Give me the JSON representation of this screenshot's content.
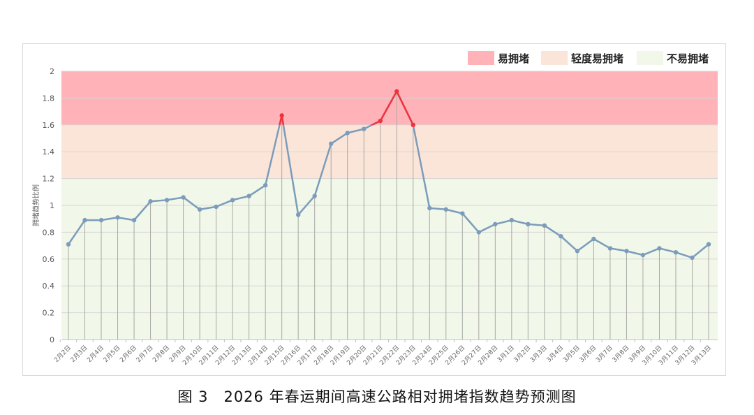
{
  "chart_data": {
    "type": "line",
    "title": "",
    "caption": "图 3　2026 年春运期间高速公路相对拥堵指数趋势预测图",
    "xlabel": "",
    "ylabel": "拥堵趋势比例",
    "ylim": [
      0,
      2
    ],
    "yticks": [
      "0",
      "0.2",
      "0.4",
      "0.6",
      "0.8",
      "1",
      "1.2",
      "1.4",
      "1.6",
      "1.8",
      "2"
    ],
    "grid": true,
    "legend_position": "top-right",
    "bands": [
      {
        "name": "易拥堵",
        "from": 1.6,
        "to": 2.0,
        "color": "#ffb3b8"
      },
      {
        "name": "轻度易拥堵",
        "from": 1.2,
        "to": 1.6,
        "color": "#fbe5d8"
      },
      {
        "name": "不易拥堵",
        "from": 0,
        "to": 1.2,
        "color": "#f1f7e9"
      }
    ],
    "line_color": "#7b9cba",
    "highlight_color": "#f0323c",
    "highlight_threshold": 1.6,
    "categories": [
      "2月2日",
      "2月3日",
      "2月4日",
      "2月5日",
      "2月6日",
      "2月7日",
      "2月8日",
      "2月9日",
      "2月10日",
      "2月11日",
      "2月12日",
      "2月13日",
      "2月14日",
      "2月15日",
      "2月16日",
      "2月17日",
      "2月18日",
      "2月19日",
      "2月20日",
      "2月21日",
      "2月22日",
      "2月23日",
      "2月24日",
      "2月25日",
      "2月26日",
      "2月27日",
      "2月28日",
      "3月1日",
      "3月2日",
      "3月3日",
      "3月4日",
      "3月5日",
      "3月6日",
      "3月7日",
      "3月8日",
      "3月9日",
      "3月10日",
      "3月11日",
      "3月12日",
      "3月13日"
    ],
    "values": [
      0.71,
      0.89,
      0.89,
      0.91,
      0.89,
      1.03,
      1.04,
      1.06,
      0.97,
      0.99,
      1.04,
      1.07,
      1.15,
      1.67,
      0.93,
      1.07,
      1.46,
      1.54,
      1.57,
      1.63,
      1.85,
      1.6,
      0.98,
      0.97,
      0.94,
      0.8,
      0.86,
      0.89,
      0.86,
      0.85,
      0.77,
      0.66,
      0.75,
      0.68,
      0.66,
      0.63,
      0.68,
      0.65,
      0.61,
      0.71
    ]
  }
}
